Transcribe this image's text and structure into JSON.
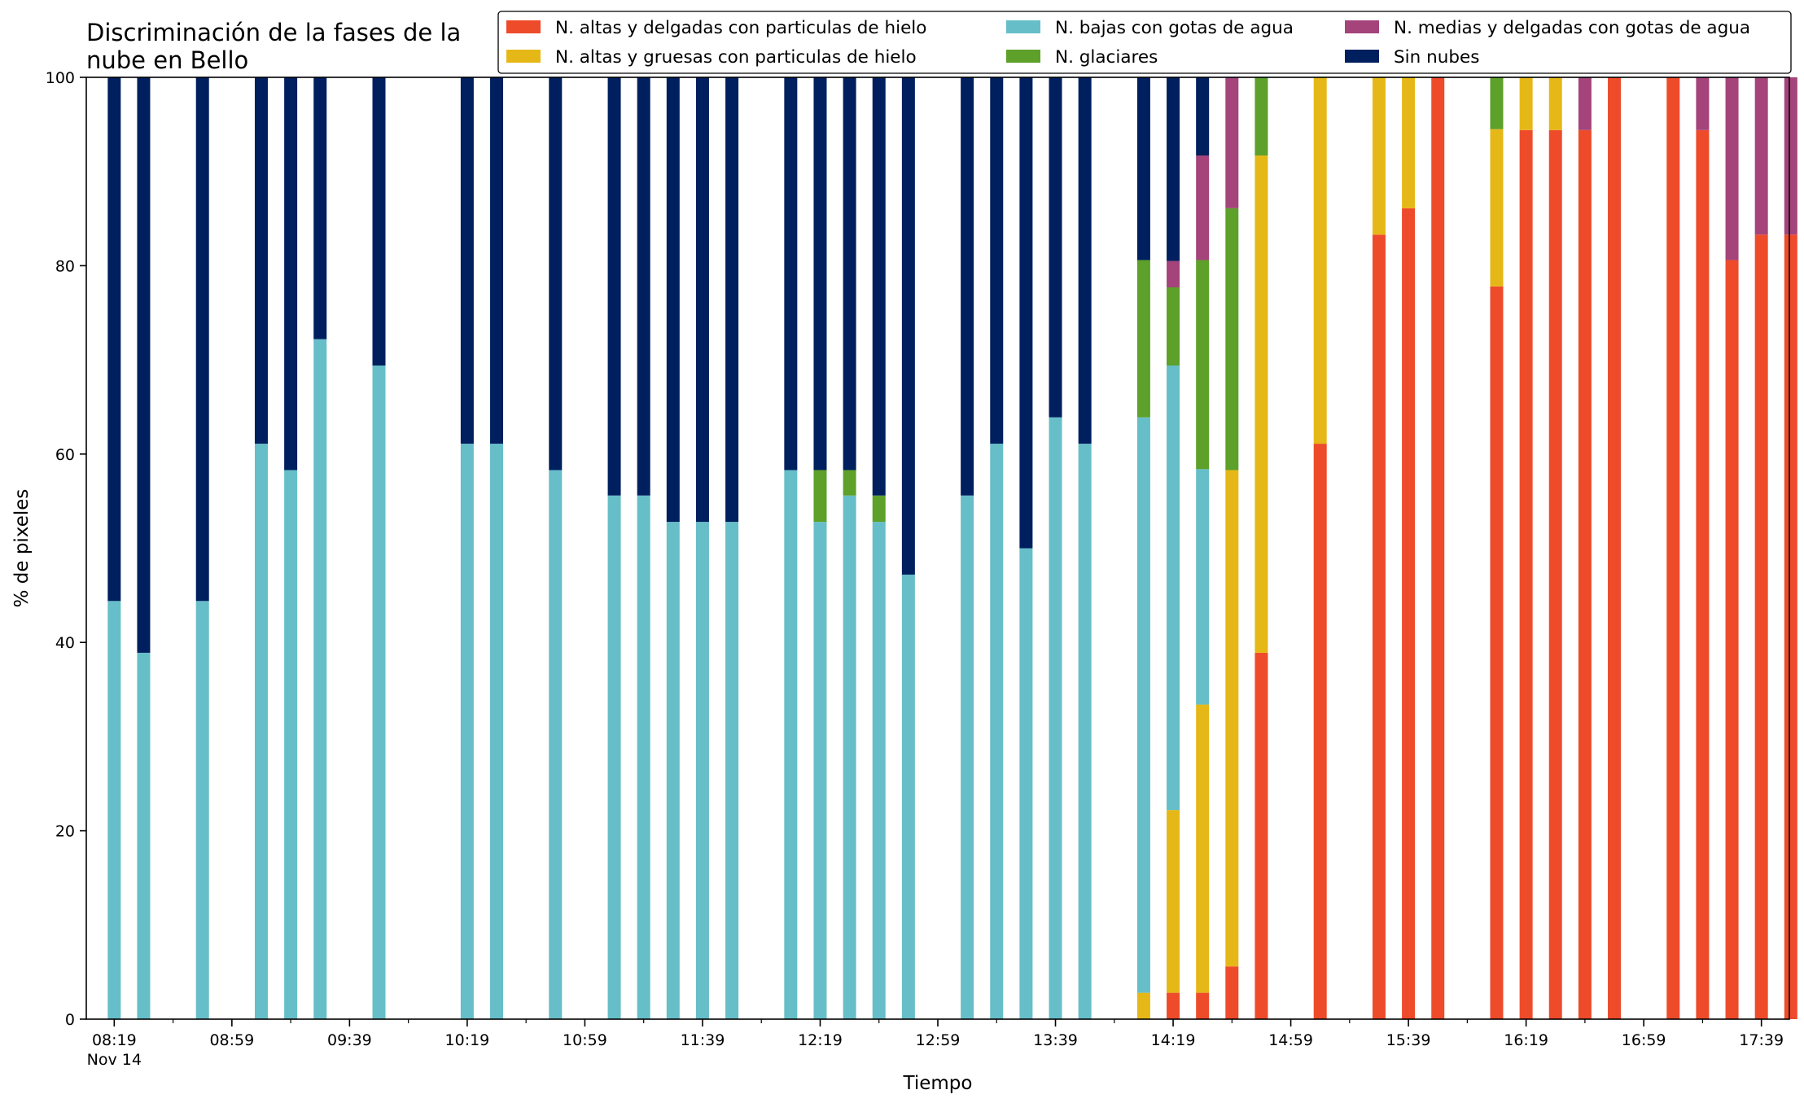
{
  "chart_data": {
    "type": "bar",
    "stacked": true,
    "title_lines": [
      "Discriminación de la fases de la",
      "nube en Bello"
    ],
    "xlabel": "Tiempo",
    "ylabel": "% de pixeles",
    "ylim": [
      0,
      100
    ],
    "yticks": [
      0,
      20,
      40,
      60,
      80,
      100
    ],
    "x_range_minutes": [
      -9.5,
      569.5
    ],
    "x_ticks": [
      {
        "minute": 0,
        "label": "08:19",
        "sublabel": "Nov 14"
      },
      {
        "minute": 40,
        "label": "08:59"
      },
      {
        "minute": 80,
        "label": "09:39"
      },
      {
        "minute": 120,
        "label": "10:19"
      },
      {
        "minute": 160,
        "label": "10:59"
      },
      {
        "minute": 200,
        "label": "11:39"
      },
      {
        "minute": 240,
        "label": "12:19"
      },
      {
        "minute": 280,
        "label": "12:59"
      },
      {
        "minute": 320,
        "label": "13:39"
      },
      {
        "minute": 360,
        "label": "14:19"
      },
      {
        "minute": 400,
        "label": "14:59"
      },
      {
        "minute": 440,
        "label": "15:39"
      },
      {
        "minute": 480,
        "label": "16:19"
      },
      {
        "minute": 520,
        "label": "16:59"
      },
      {
        "minute": 560,
        "label": "17:39"
      }
    ],
    "legend_position": "top-right",
    "series": [
      {
        "key": "altas_delgadas_hielo",
        "name": "N. altas y delgadas con particulas de hielo",
        "color": "#ee4b2b"
      },
      {
        "key": "altas_gruesas_hielo",
        "name": "N. altas y gruesas con particulas de hielo",
        "color": "#e6b817"
      },
      {
        "key": "bajas_agua",
        "name": "N. bajas con gotas de agua",
        "color": "#66bec8"
      },
      {
        "key": "glaciares",
        "name": "N. glaciares",
        "color": "#5da02a"
      },
      {
        "key": "medias_delgadas_agua",
        "name": "N. medias y delgadas con gotas de agua",
        "color": "#a4447b"
      },
      {
        "key": "sin_nubes",
        "name": "Sin nubes",
        "color": "#001f5f"
      }
    ],
    "bars": [
      {
        "minute": 0,
        "values": [
          0,
          0,
          44.4,
          0,
          0,
          55.6
        ]
      },
      {
        "minute": 10,
        "values": [
          0,
          0,
          38.9,
          0,
          0,
          61.1
        ]
      },
      {
        "minute": 30,
        "values": [
          0,
          0,
          44.4,
          0,
          0,
          55.6
        ]
      },
      {
        "minute": 50,
        "values": [
          0,
          0,
          61.1,
          0,
          0,
          38.9
        ]
      },
      {
        "minute": 60,
        "values": [
          0,
          0,
          58.3,
          0,
          0,
          41.7
        ]
      },
      {
        "minute": 70,
        "values": [
          0,
          0,
          72.2,
          0,
          0,
          27.8
        ]
      },
      {
        "minute": 90,
        "values": [
          0,
          0,
          69.4,
          0,
          0,
          30.6
        ]
      },
      {
        "minute": 120,
        "values": [
          0,
          0,
          61.1,
          0,
          0,
          38.9
        ]
      },
      {
        "minute": 130,
        "values": [
          0,
          0,
          61.1,
          0,
          0,
          38.9
        ]
      },
      {
        "minute": 150,
        "values": [
          0,
          0,
          58.3,
          0,
          0,
          41.7
        ]
      },
      {
        "minute": 170,
        "values": [
          0,
          0,
          55.6,
          0,
          0,
          44.4
        ]
      },
      {
        "minute": 180,
        "values": [
          0,
          0,
          55.6,
          0,
          0,
          44.4
        ]
      },
      {
        "minute": 190,
        "values": [
          0,
          0,
          52.8,
          0,
          0,
          47.2
        ]
      },
      {
        "minute": 200,
        "values": [
          0,
          0,
          52.8,
          0,
          0,
          47.2
        ]
      },
      {
        "minute": 210,
        "values": [
          0,
          0,
          52.8,
          0,
          0,
          47.2
        ]
      },
      {
        "minute": 230,
        "values": [
          0,
          0,
          58.3,
          0,
          0,
          41.7
        ]
      },
      {
        "minute": 240,
        "values": [
          0,
          0,
          52.8,
          5.5,
          0,
          41.7
        ]
      },
      {
        "minute": 250,
        "values": [
          0,
          0,
          55.6,
          2.7,
          0,
          41.7
        ]
      },
      {
        "minute": 260,
        "values": [
          0,
          0,
          52.8,
          2.8,
          0,
          44.4
        ]
      },
      {
        "minute": 270,
        "values": [
          0,
          0,
          47.2,
          0,
          0,
          52.8
        ]
      },
      {
        "minute": 290,
        "values": [
          0,
          0,
          55.6,
          0,
          0,
          44.4
        ]
      },
      {
        "minute": 300,
        "values": [
          0,
          0,
          61.1,
          0,
          0,
          38.9
        ]
      },
      {
        "minute": 310,
        "values": [
          0,
          0,
          50.0,
          0,
          0,
          50.0
        ]
      },
      {
        "minute": 320,
        "values": [
          0,
          0,
          63.9,
          0,
          0,
          36.1
        ]
      },
      {
        "minute": 330,
        "values": [
          0,
          0,
          61.1,
          0,
          0,
          38.9
        ]
      },
      {
        "minute": 350,
        "values": [
          0,
          2.8,
          61.1,
          16.7,
          0,
          19.4
        ]
      },
      {
        "minute": 360,
        "values": [
          2.8,
          19.4,
          47.2,
          8.3,
          2.8,
          19.5
        ]
      },
      {
        "minute": 370,
        "values": [
          2.8,
          30.6,
          25.0,
          22.2,
          11.1,
          8.3
        ]
      },
      {
        "minute": 380,
        "values": [
          5.6,
          52.7,
          0,
          27.8,
          13.9,
          0
        ]
      },
      {
        "minute": 390,
        "values": [
          38.9,
          52.8,
          0,
          8.3,
          0,
          0
        ]
      },
      {
        "minute": 410,
        "values": [
          61.1,
          38.9,
          0,
          0,
          0,
          0
        ]
      },
      {
        "minute": 430,
        "values": [
          83.3,
          16.7,
          0,
          0,
          0,
          0
        ]
      },
      {
        "minute": 440,
        "values": [
          86.1,
          13.9,
          0,
          0,
          0,
          0
        ]
      },
      {
        "minute": 450,
        "values": [
          100,
          0,
          0,
          0,
          0,
          0
        ]
      },
      {
        "minute": 470,
        "values": [
          77.8,
          16.7,
          0,
          5.5,
          0,
          0
        ]
      },
      {
        "minute": 480,
        "values": [
          94.4,
          5.6,
          0,
          0,
          0,
          0
        ]
      },
      {
        "minute": 490,
        "values": [
          94.4,
          5.6,
          0,
          0,
          0,
          0
        ]
      },
      {
        "minute": 500,
        "values": [
          94.4,
          0,
          0,
          0,
          5.6,
          0
        ]
      },
      {
        "minute": 510,
        "values": [
          100,
          0,
          0,
          0,
          0,
          0
        ]
      },
      {
        "minute": 530,
        "values": [
          100,
          0,
          0,
          0,
          0,
          0
        ]
      },
      {
        "minute": 540,
        "values": [
          94.4,
          0,
          0,
          0,
          5.6,
          0
        ]
      },
      {
        "minute": 550,
        "values": [
          80.6,
          0,
          0,
          0,
          19.4,
          0
        ]
      },
      {
        "minute": 560,
        "values": [
          83.3,
          0,
          0,
          0,
          16.7,
          0
        ]
      },
      {
        "minute": 570,
        "values": [
          83.3,
          0,
          0,
          0,
          16.7,
          0
        ]
      }
    ]
  }
}
